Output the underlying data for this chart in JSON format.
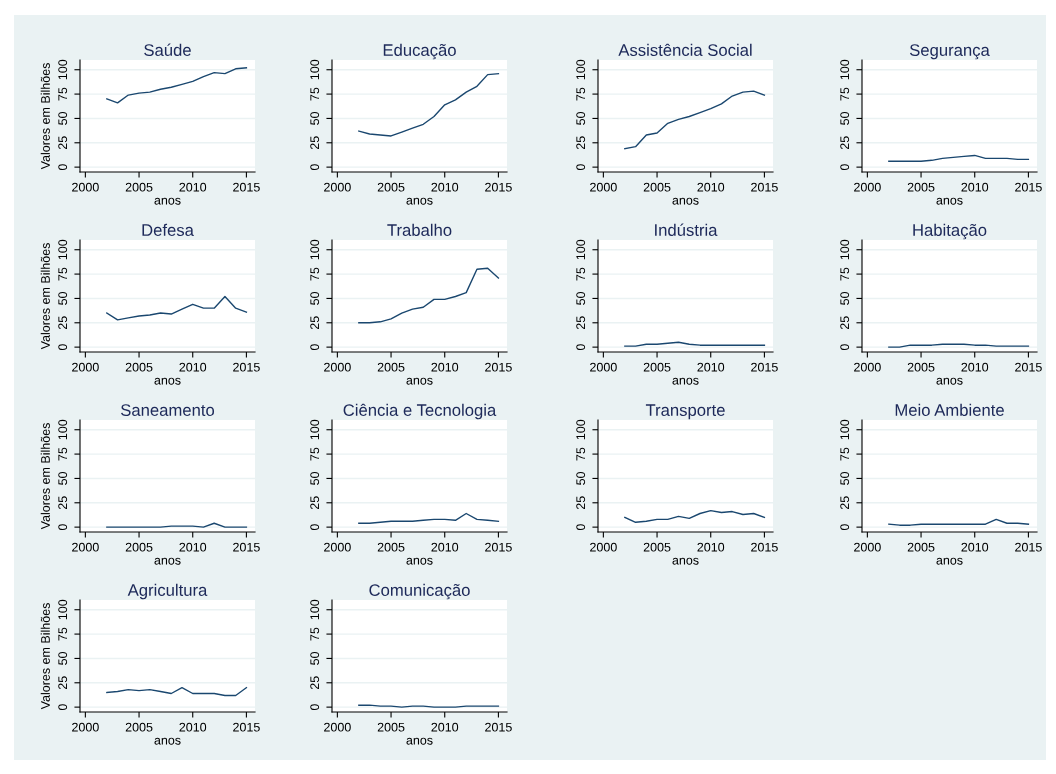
{
  "chart_data": [
    {
      "type": "line",
      "title": "Saúde",
      "xlabel": "anos",
      "ylabel": "Valores em Bilhões",
      "x": [
        2002,
        2003,
        2004,
        2005,
        2006,
        2007,
        2008,
        2009,
        2010,
        2011,
        2012,
        2013,
        2014,
        2015
      ],
      "values": [
        70,
        66,
        74,
        76,
        77,
        80,
        82,
        85,
        88,
        93,
        97,
        96,
        101,
        102
      ],
      "color": "#1a476f",
      "xlim": [
        1999.5,
        2015.8
      ],
      "ylim": [
        -5,
        110
      ],
      "xticks": [
        2000,
        2005,
        2010,
        2015
      ],
      "yticks": [
        0,
        25,
        50,
        75,
        100
      ],
      "grid": "y"
    },
    {
      "type": "line",
      "title": "Educação",
      "xlabel": "anos",
      "x": [
        2002,
        2003,
        2004,
        2005,
        2006,
        2007,
        2008,
        2009,
        2010,
        2011,
        2012,
        2013,
        2014,
        2015
      ],
      "values": [
        37,
        34,
        33,
        32,
        36,
        40,
        44,
        52,
        64,
        69,
        77,
        83,
        95,
        96
      ],
      "color": "#1a476f",
      "xlim": [
        1999.5,
        2015.8
      ],
      "ylim": [
        -5,
        110
      ],
      "xticks": [
        2000,
        2005,
        2010,
        2015
      ],
      "yticks": [
        0,
        25,
        50,
        75,
        100
      ],
      "grid": "y"
    },
    {
      "type": "line",
      "title": "Assistência Social",
      "xlabel": "anos",
      "x": [
        2002,
        2003,
        2004,
        2005,
        2006,
        2007,
        2008,
        2009,
        2010,
        2011,
        2012,
        2013,
        2014,
        2015
      ],
      "values": [
        19,
        21,
        33,
        35,
        45,
        49,
        52,
        56,
        60,
        65,
        73,
        77,
        78,
        74
      ],
      "color": "#1a476f",
      "xlim": [
        1999.5,
        2015.8
      ],
      "ylim": [
        -5,
        110
      ],
      "xticks": [
        2000,
        2005,
        2010,
        2015
      ],
      "yticks": [
        0,
        25,
        50,
        75,
        100
      ],
      "grid": "y"
    },
    {
      "type": "line",
      "title": "Segurança",
      "xlabel": "anos",
      "x": [
        2002,
        2003,
        2004,
        2005,
        2006,
        2007,
        2008,
        2009,
        2010,
        2011,
        2012,
        2013,
        2014,
        2015
      ],
      "values": [
        6,
        6,
        6,
        6,
        7,
        9,
        10,
        11,
        12,
        9,
        9,
        9,
        8,
        8
      ],
      "color": "#1a476f",
      "xlim": [
        1999.5,
        2015.8
      ],
      "ylim": [
        -5,
        110
      ],
      "xticks": [
        2000,
        2005,
        2010,
        2015
      ],
      "yticks": [
        0,
        25,
        50,
        75,
        100
      ],
      "grid": "y"
    },
    {
      "type": "line",
      "title": "Defesa",
      "xlabel": "anos",
      "ylabel": "Valores em Bilhões",
      "x": [
        2002,
        2003,
        2004,
        2005,
        2006,
        2007,
        2008,
        2009,
        2010,
        2011,
        2012,
        2013,
        2014,
        2015
      ],
      "values": [
        35,
        28,
        30,
        32,
        33,
        35,
        34,
        39,
        44,
        40,
        40,
        52,
        40,
        36
      ],
      "color": "#1a476f",
      "xlim": [
        1999.5,
        2015.8
      ],
      "ylim": [
        -5,
        110
      ],
      "xticks": [
        2000,
        2005,
        2010,
        2015
      ],
      "yticks": [
        0,
        25,
        50,
        75,
        100
      ],
      "grid": "y"
    },
    {
      "type": "line",
      "title": "Trabalho",
      "xlabel": "anos",
      "x": [
        2002,
        2003,
        2004,
        2005,
        2006,
        2007,
        2008,
        2009,
        2010,
        2011,
        2012,
        2013,
        2014,
        2015
      ],
      "values": [
        25,
        25,
        26,
        29,
        35,
        39,
        41,
        49,
        49,
        52,
        56,
        80,
        81,
        71
      ],
      "color": "#1a476f",
      "xlim": [
        1999.5,
        2015.8
      ],
      "ylim": [
        -5,
        110
      ],
      "xticks": [
        2000,
        2005,
        2010,
        2015
      ],
      "yticks": [
        0,
        25,
        50,
        75,
        100
      ],
      "grid": "y"
    },
    {
      "type": "line",
      "title": "Indústria",
      "xlabel": "anos",
      "x": [
        2002,
        2003,
        2004,
        2005,
        2006,
        2007,
        2008,
        2009,
        2010,
        2011,
        2012,
        2013,
        2014,
        2015
      ],
      "values": [
        1,
        1,
        3,
        3,
        4,
        5,
        3,
        2,
        2,
        2,
        2,
        2,
        2,
        2
      ],
      "color": "#1a476f",
      "xlim": [
        1999.5,
        2015.8
      ],
      "ylim": [
        -5,
        110
      ],
      "xticks": [
        2000,
        2005,
        2010,
        2015
      ],
      "yticks": [
        0,
        25,
        50,
        75,
        100
      ],
      "grid": "y"
    },
    {
      "type": "line",
      "title": "Habitação",
      "xlabel": "anos",
      "x": [
        2002,
        2003,
        2004,
        2005,
        2006,
        2007,
        2008,
        2009,
        2010,
        2011,
        2012,
        2013,
        2014,
        2015
      ],
      "values": [
        0,
        0,
        2,
        2,
        2,
        3,
        3,
        3,
        2,
        2,
        1,
        1,
        1,
        1
      ],
      "color": "#1a476f",
      "xlim": [
        1999.5,
        2015.8
      ],
      "ylim": [
        -5,
        110
      ],
      "xticks": [
        2000,
        2005,
        2010,
        2015
      ],
      "yticks": [
        0,
        25,
        50,
        75,
        100
      ],
      "grid": "y"
    },
    {
      "type": "line",
      "title": "Saneamento",
      "xlabel": "anos",
      "ylabel": "Valores em Bilhões",
      "x": [
        2002,
        2003,
        2004,
        2005,
        2006,
        2007,
        2008,
        2009,
        2010,
        2011,
        2012,
        2013,
        2014,
        2015
      ],
      "values": [
        0,
        0,
        0,
        0,
        0,
        0,
        1,
        1,
        1,
        0,
        4,
        0,
        0,
        0
      ],
      "color": "#1a476f",
      "xlim": [
        1999.5,
        2015.8
      ],
      "ylim": [
        -5,
        110
      ],
      "xticks": [
        2000,
        2005,
        2010,
        2015
      ],
      "yticks": [
        0,
        25,
        50,
        75,
        100
      ],
      "grid": "y"
    },
    {
      "type": "line",
      "title": "Ciência e Tecnologia",
      "xlabel": "anos",
      "x": [
        2002,
        2003,
        2004,
        2005,
        2006,
        2007,
        2008,
        2009,
        2010,
        2011,
        2012,
        2013,
        2014,
        2015
      ],
      "values": [
        4,
        4,
        5,
        6,
        6,
        6,
        7,
        8,
        8,
        7,
        14,
        8,
        7,
        6
      ],
      "color": "#1a476f",
      "xlim": [
        1999.5,
        2015.8
      ],
      "ylim": [
        -5,
        110
      ],
      "xticks": [
        2000,
        2005,
        2010,
        2015
      ],
      "yticks": [
        0,
        25,
        50,
        75,
        100
      ],
      "grid": "y"
    },
    {
      "type": "line",
      "title": "Transporte",
      "xlabel": "anos",
      "x": [
        2002,
        2003,
        2004,
        2005,
        2006,
        2007,
        2008,
        2009,
        2010,
        2011,
        2012,
        2013,
        2014,
        2015
      ],
      "values": [
        10,
        5,
        6,
        8,
        8,
        11,
        9,
        14,
        17,
        15,
        16,
        13,
        14,
        10
      ],
      "color": "#1a476f",
      "xlim": [
        1999.5,
        2015.8
      ],
      "ylim": [
        -5,
        110
      ],
      "xticks": [
        2000,
        2005,
        2010,
        2015
      ],
      "yticks": [
        0,
        25,
        50,
        75,
        100
      ],
      "grid": "y"
    },
    {
      "type": "line",
      "title": "Meio Ambiente",
      "xlabel": "anos",
      "x": [
        2002,
        2003,
        2004,
        2005,
        2006,
        2007,
        2008,
        2009,
        2010,
        2011,
        2012,
        2013,
        2014,
        2015
      ],
      "values": [
        3,
        2,
        2,
        3,
        3,
        3,
        3,
        3,
        3,
        3,
        8,
        4,
        4,
        3
      ],
      "color": "#1a476f",
      "xlim": [
        1999.5,
        2015.8
      ],
      "ylim": [
        -5,
        110
      ],
      "xticks": [
        2000,
        2005,
        2010,
        2015
      ],
      "yticks": [
        0,
        25,
        50,
        75,
        100
      ],
      "grid": "y"
    },
    {
      "type": "line",
      "title": "Agricultura",
      "xlabel": "anos",
      "ylabel": "Valores em Bilhões",
      "x": [
        2002,
        2003,
        2004,
        2005,
        2006,
        2007,
        2008,
        2009,
        2010,
        2011,
        2012,
        2013,
        2014,
        2015
      ],
      "values": [
        15,
        16,
        18,
        17,
        18,
        16,
        14,
        20,
        14,
        14,
        14,
        12,
        12,
        20
      ],
      "color": "#1a476f",
      "xlim": [
        1999.5,
        2015.8
      ],
      "ylim": [
        -5,
        110
      ],
      "xticks": [
        2000,
        2005,
        2010,
        2015
      ],
      "yticks": [
        0,
        25,
        50,
        75,
        100
      ],
      "grid": "y"
    },
    {
      "type": "line",
      "title": "Comunicação",
      "xlabel": "anos",
      "x": [
        2002,
        2003,
        2004,
        2005,
        2006,
        2007,
        2008,
        2009,
        2010,
        2011,
        2012,
        2013,
        2014,
        2015
      ],
      "values": [
        2,
        2,
        1,
        1,
        0,
        1,
        1,
        0,
        0,
        0,
        1,
        1,
        1,
        1
      ],
      "color": "#1a476f",
      "xlim": [
        1999.5,
        2015.8
      ],
      "ylim": [
        -5,
        110
      ],
      "xticks": [
        2000,
        2005,
        2010,
        2015
      ],
      "yticks": [
        0,
        25,
        50,
        75,
        100
      ],
      "grid": "y"
    }
  ]
}
